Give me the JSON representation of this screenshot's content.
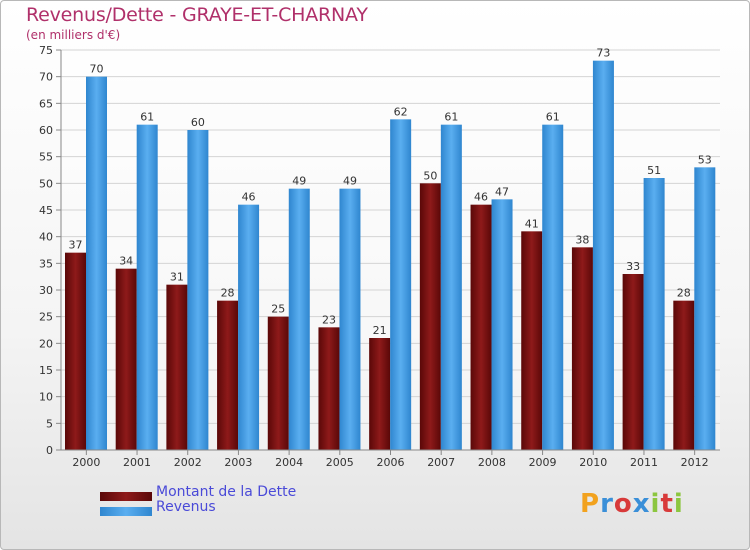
{
  "title": "Revenus/Dette - GRAYE-ET-CHARNAY",
  "subtitle": "(en milliers d'€)",
  "logo": {
    "text": "Proxiti",
    "colors": [
      "#f2a21e",
      "#3a8fd8",
      "#d83a3a",
      "#3a8fd8",
      "#8cc63f",
      "#d83a3a",
      "#8cc63f"
    ]
  },
  "legend": [
    {
      "label": "Montant de la Dette",
      "color": "#7a1010"
    },
    {
      "label": "Revenus",
      "color": "#3c96dc"
    }
  ],
  "chart_data": {
    "type": "bar",
    "categories": [
      "2000",
      "2001",
      "2002",
      "2003",
      "2004",
      "2005",
      "2006",
      "2007",
      "2008",
      "2009",
      "2010",
      "2011",
      "2012"
    ],
    "series": [
      {
        "name": "Montant de la Dette",
        "color": "#7a1010",
        "values": [
          37,
          34,
          31,
          28,
          25,
          23,
          21,
          50,
          46,
          41,
          38,
          33,
          28
        ]
      },
      {
        "name": "Revenus",
        "color": "#3c96dc",
        "values": [
          70,
          61,
          60,
          46,
          49,
          49,
          62,
          61,
          47,
          61,
          73,
          51,
          53
        ]
      }
    ],
    "ylim": [
      0,
      75
    ],
    "yticks": [
      0,
      5,
      10,
      15,
      20,
      25,
      30,
      35,
      40,
      45,
      50,
      55,
      60,
      65,
      70,
      75
    ],
    "grid": true
  }
}
